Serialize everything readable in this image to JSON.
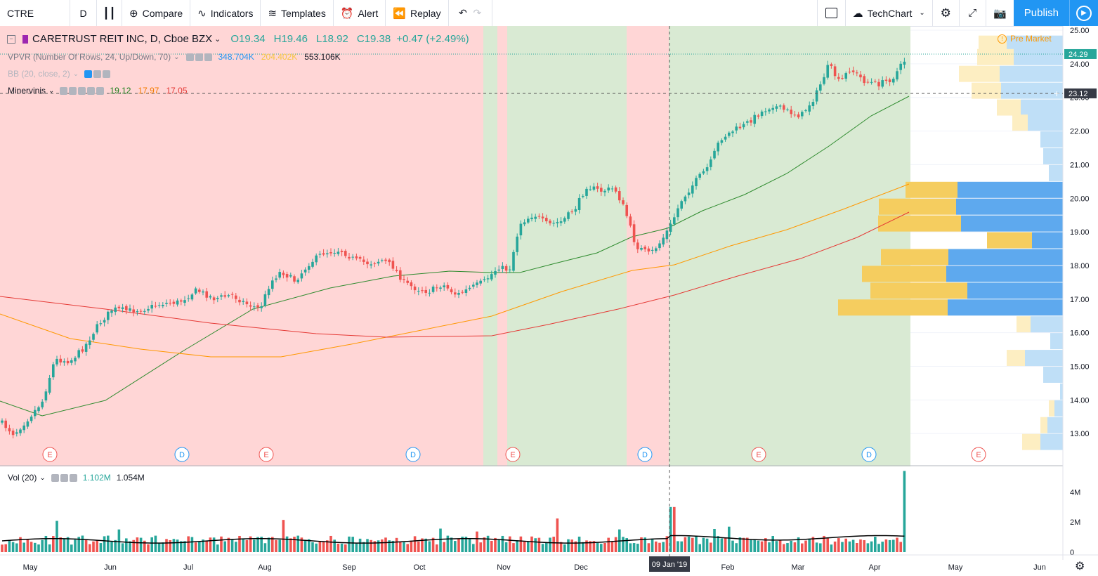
{
  "toolbar": {
    "symbol": "CTRE",
    "interval": "D",
    "compare": "Compare",
    "indicators": "Indicators",
    "templates": "Templates",
    "alert": "Alert",
    "replay": "Replay",
    "layout_name": "TechChart",
    "publish": "Publish"
  },
  "legend": {
    "title": "CARETRUST REIT INC, D, Cboe BZX",
    "open": "O19.34",
    "high": "H19.46",
    "low": "L18.92",
    "close": "C19.38",
    "change": "+0.47 (+2.49%)",
    "pre_market": "Pre Market",
    "vpvr": {
      "label": "VPVR (Number Of Rows, 24, Up/Down, 70)",
      "up": "348.704K",
      "down": "204.402K",
      "total": "553.106K"
    },
    "bb": {
      "label": "BB (20, close, 2)"
    },
    "minervinis": {
      "label": "Minervinis",
      "v1": "19.12",
      "v2": "17.97",
      "v3": "17.05"
    },
    "vol": {
      "label": "Vol (20)",
      "v1": "1.102M",
      "v2": "1.054M"
    }
  },
  "price_scale": {
    "ticks": [
      "25.00",
      "24.00",
      "23.00",
      "22.00",
      "21.00",
      "20.00",
      "19.00",
      "18.00",
      "17.00",
      "16.00",
      "15.00",
      "14.00",
      "13.00"
    ],
    "last_price_label": "24.29",
    "crosshair_label": "23.12"
  },
  "volume_scale": {
    "ticks": [
      "4M",
      "2M",
      "0"
    ]
  },
  "time_axis": {
    "labels": [
      "May",
      "Jun",
      "Jul",
      "Aug",
      "Sep",
      "Oct",
      "Nov",
      "Dec",
      "2019",
      "Feb",
      "Mar",
      "Apr",
      "May",
      "Jun"
    ],
    "crosshair_label": "09 Jan '19"
  },
  "events": [
    "E",
    "D",
    "E",
    "D",
    "E",
    "D",
    "E",
    "D",
    "E"
  ],
  "colors": {
    "up": "#26a69a",
    "down": "#ef5350",
    "accent": "#2196f3",
    "zone_red": "#ffd6d6",
    "zone_green": "#d9ead3"
  }
}
